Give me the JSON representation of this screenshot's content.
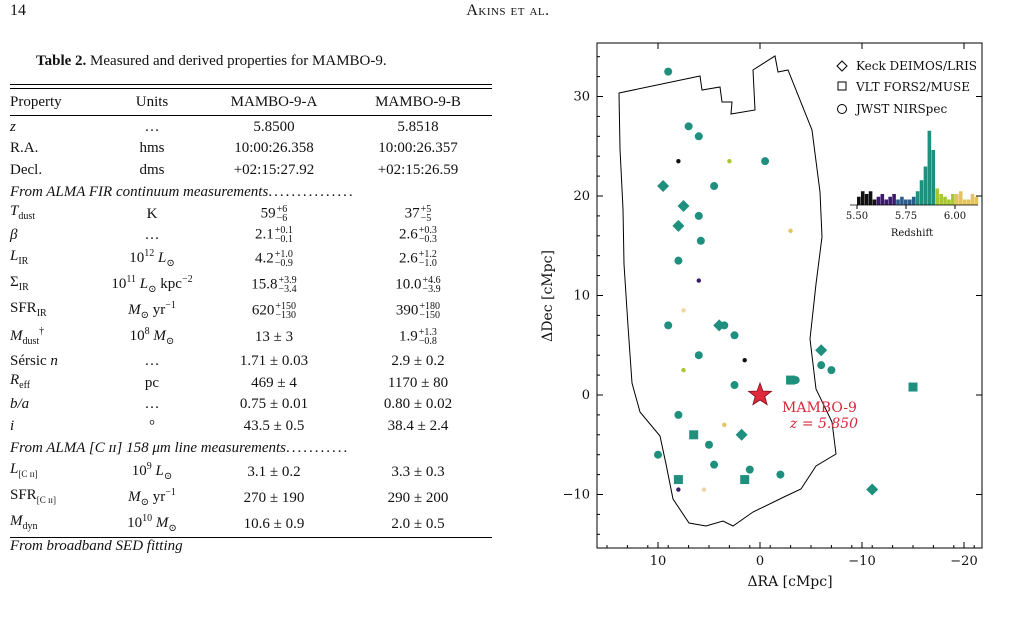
{
  "page": {
    "number": "14",
    "running_head": "Akins et al."
  },
  "table": {
    "caption_label": "Table 2.",
    "caption_text": "Measured and derived properties for MAMBO-9.",
    "headers": [
      "Property",
      "Units",
      "MAMBO-9-A",
      "MAMBO-9-B"
    ],
    "rows_top": [
      {
        "prop": "z",
        "units": "…",
        "a": "5.8500",
        "b": "5.8518"
      },
      {
        "prop": "R.A.",
        "units": "hms",
        "a": "10:00:26.358",
        "b": "10:00:26.357"
      },
      {
        "prop": "Decl.",
        "units": "dms",
        "a": "+02:15:27.92",
        "b": "+02:15:26.59"
      }
    ],
    "section_fir": "From ALMA FIR continuum measurements",
    "section_cii": "From ALMA [C ɪɪ] 158 μm line measurements",
    "section_sed": "From broadband SED fitting",
    "fir": {
      "tdust": {
        "units": "K",
        "a_val": "59",
        "a_up": "+6",
        "a_lo": "−6",
        "b_val": "37",
        "b_up": "+5",
        "b_lo": "−5"
      },
      "beta": {
        "units": "…",
        "a_val": "2.1",
        "a_up": "+0.1",
        "a_lo": "−0.1",
        "b_val": "2.6",
        "b_up": "+0.3",
        "b_lo": "−0.3"
      },
      "lir": {
        "units_pre": "10",
        "units_exp": "12",
        "units_post": "L",
        "a_val": "4.2",
        "a_up": "+1.0",
        "a_lo": "−0.9",
        "b_val": "2.6",
        "b_up": "+1.2",
        "b_lo": "−1.0"
      },
      "sigir": {
        "units_pre": "10",
        "units_exp": "11",
        "units_post": "L",
        "units_tail": "kpc",
        "units_tail_exp": "−2",
        "a_val": "15.8",
        "a_up": "+3.9",
        "a_lo": "−3.4",
        "b_val": "10.0",
        "b_up": "+4.6",
        "b_lo": "−3.9"
      },
      "sfrir": {
        "units_post": "M",
        "units_tail": "yr",
        "units_tail_exp": "−1",
        "a_val": "620",
        "a_up": "+150",
        "a_lo": "−130",
        "b_val": "390",
        "b_up": "+180",
        "b_lo": "−150"
      },
      "mdust": {
        "units_pre": "10",
        "units_exp": "8",
        "units_post": "M",
        "a": "13 ± 3",
        "b_val": "1.9",
        "b_up": "+1.3",
        "b_lo": "−0.8"
      },
      "sersic": {
        "prop": "Sérsic",
        "units": "…",
        "a": "1.71 ± 0.03",
        "b": "2.9 ± 0.2"
      },
      "reff": {
        "units": "pc",
        "a": "469 ± 4",
        "b": "1170 ± 80"
      },
      "ba": {
        "units": "…",
        "a": "0.75 ± 0.01",
        "b": "0.80 ± 0.02"
      },
      "incl": {
        "units": "°",
        "a": "43.5 ± 0.5",
        "b": "38.4 ± 2.4"
      }
    },
    "cii": {
      "lcii": {
        "units_pre": "10",
        "units_exp": "9",
        "units_post": "L",
        "a": "3.1  ± 0.2",
        "b": "3.3 ± 0.3"
      },
      "sfrcii": {
        "units_post": "M",
        "units_tail": "yr",
        "units_tail_exp": "−1",
        "a": "270 ± 190",
        "b": "290 ± 200"
      },
      "mdyn": {
        "units_pre": "10",
        "units_exp": "10",
        "units_post": "M",
        "a": "10.6 ± 0.9",
        "b": "2.0 ± 0.5"
      }
    }
  },
  "figure": {
    "xlabel": "ΔRA [cMpc]",
    "ylabel": "ΔDec [cMpc]",
    "xticks": [
      "10",
      "0",
      "−10",
      "−20"
    ],
    "yticks": [
      "30",
      "20",
      "10",
      "0",
      "−10"
    ],
    "legend": [
      "Keck DEIMOS/LRIS",
      "VLT FORS2/MUSE",
      "JWST NIRSpec"
    ],
    "target_label": "MAMBO-9",
    "target_z": "z = 5.850",
    "inset_xlabel": "Redshift",
    "inset_ticks": [
      "5.50",
      "5.75",
      "6.00"
    ],
    "colors": {
      "teal": "#1f8f7e",
      "black": "#111111",
      "purple": "#3b1a6b",
      "lime": "#a8c62f",
      "yellow": "#e2c45a",
      "peach": "#f1d3a3",
      "star": "#e0283d"
    }
  },
  "chart_data": {
    "type": "scatter",
    "xlabel": "ΔRA [cMpc]",
    "ylabel": "ΔDec [cMpc]",
    "xlim": [
      15,
      -25
    ],
    "ylim": [
      -15,
      35
    ],
    "series": [
      {
        "name": "Keck DEIMOS/LRIS",
        "marker": "diamond",
        "points": [
          [
            9.5,
            21
          ],
          [
            8,
            17
          ],
          [
            -6,
            4.5
          ],
          [
            1.8,
            -4
          ],
          [
            -11,
            -9.5
          ],
          [
            7.5,
            19
          ],
          [
            4,
            7
          ]
        ]
      },
      {
        "name": "VLT FORS2/MUSE",
        "marker": "square",
        "points": [
          [
            -3,
            1.5
          ],
          [
            -15,
            0.8
          ],
          [
            6.5,
            -4
          ],
          [
            8,
            -8.5
          ],
          [
            1.5,
            -8.5
          ]
        ]
      },
      {
        "name": "JWST NIRSpec",
        "marker": "circle",
        "points": [
          [
            9,
            32.5
          ],
          [
            7,
            27
          ],
          [
            3,
            23.5
          ],
          [
            -0.5,
            23.5
          ],
          [
            6,
            26
          ],
          [
            8,
            23.5
          ],
          [
            4.5,
            21
          ],
          [
            6,
            18
          ],
          [
            -3,
            16.5
          ],
          [
            5.8,
            15.5
          ],
          [
            8,
            13.5
          ],
          [
            6,
            11.5
          ],
          [
            9,
            7
          ],
          [
            3.5,
            7
          ],
          [
            7.5,
            8.5
          ],
          [
            2.5,
            6
          ],
          [
            6,
            4
          ],
          [
            7.5,
            2.5
          ],
          [
            -6,
            3
          ],
          [
            -7,
            2.5
          ],
          [
            1.5,
            3.5
          ],
          [
            2.5,
            1
          ],
          [
            -3.5,
            1.5
          ],
          [
            3.5,
            -3
          ],
          [
            5,
            -5
          ],
          [
            4.5,
            -7
          ],
          [
            8,
            -9.5
          ],
          [
            1,
            -7.5
          ],
          [
            10,
            -6
          ],
          [
            5.5,
            -9.5
          ],
          [
            -2,
            -8
          ],
          [
            8,
            -2
          ]
        ]
      }
    ],
    "target": {
      "name": "MAMBO-9",
      "x": 0,
      "y": 0,
      "z": 5.85
    },
    "inset": {
      "type": "bar",
      "xlabel": "Redshift",
      "ticks": [
        5.5,
        5.75,
        6.0
      ],
      "bins": [
        5.5,
        5.52,
        5.54,
        5.56,
        5.58,
        5.6,
        5.62,
        5.64,
        5.66,
        5.68,
        5.7,
        5.72,
        5.74,
        5.76,
        5.78,
        5.8,
        5.82,
        5.84,
        5.86,
        5.88,
        5.9,
        5.92,
        5.94,
        5.96,
        5.98,
        6.0,
        6.02,
        6.04,
        6.06,
        6.08,
        6.1
      ],
      "counts": [
        3,
        5,
        4,
        5,
        2,
        3,
        4,
        2,
        3,
        4,
        2,
        3,
        2,
        2,
        3,
        5,
        9,
        14,
        27,
        20,
        6,
        4,
        3,
        2,
        4,
        4,
        5,
        2,
        2,
        4,
        3
      ]
    }
  }
}
